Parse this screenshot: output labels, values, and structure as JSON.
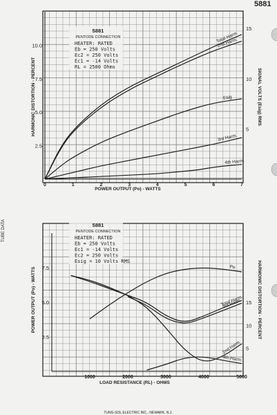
{
  "page": {
    "tube_number": "5881",
    "side_label": "TUBE DATA",
    "footer": "TUNG-SOL ELECTRIC INC., NEWARK, N.J."
  },
  "colors": {
    "paper": "#f2f2f0",
    "grid": "#8a8a8a",
    "ink": "#1e1e1e"
  },
  "punch_holes": 3,
  "chart_data": [
    {
      "type": "line",
      "title": "5881",
      "subtitle": "PENTODE CONNECTION",
      "notes": [
        "HEATER: RATED",
        "Eb = 250 Volts",
        "Ec2 = 250 Volts",
        "Ec1 = -14 Volts",
        "RL = 2500 Ohms"
      ],
      "xlabel": "POWER OUTPUT (Po) - WATTS",
      "ylabel": "HARMONIC DISTORTION - PERCENT",
      "y2label": "SIGNAL VOLTS (Esig) RMS",
      "xlim": [
        0,
        7
      ],
      "ylim": [
        0,
        12.5
      ],
      "y2lim": [
        0,
        16.67
      ],
      "xticks": [
        "0",
        "1",
        "2",
        "3",
        "4",
        "5",
        "6",
        "7"
      ],
      "yticks": [
        "2.5",
        "5.0",
        "7.5",
        "10.0"
      ],
      "y2ticks": [
        "5",
        "10",
        "15"
      ],
      "series": [
        {
          "name": "Total Harm.",
          "axis": "left",
          "x": [
            0,
            0.5,
            1,
            2,
            3,
            4,
            5,
            6,
            7
          ],
          "y": [
            0,
            2.2,
            3.7,
            5.6,
            6.9,
            7.9,
            8.9,
            9.9,
            10.8
          ]
        },
        {
          "name": "2nd Harm.",
          "axis": "left",
          "x": [
            0,
            0.5,
            1,
            2,
            3,
            4,
            5,
            6,
            7
          ],
          "y": [
            0,
            2.1,
            3.6,
            5.4,
            6.7,
            7.7,
            8.7,
            9.6,
            10.3
          ]
        },
        {
          "name": "Esig",
          "axis": "right",
          "x": [
            0,
            0.5,
            1,
            2,
            3,
            4,
            5,
            6,
            7
          ],
          "y": [
            0,
            1.2,
            2.2,
            3.7,
            4.8,
            5.8,
            6.8,
            7.6,
            8.0
          ]
        },
        {
          "name": "3rd Harm.",
          "axis": "left",
          "x": [
            0,
            1,
            2,
            3,
            4,
            5,
            6,
            7
          ],
          "y": [
            0,
            0.5,
            1.0,
            1.4,
            1.8,
            2.2,
            2.6,
            3.1
          ]
        },
        {
          "name": "4th Harm.",
          "axis": "left",
          "x": [
            0,
            1,
            2,
            3,
            4,
            5,
            5.5,
            6,
            6.5,
            7
          ],
          "y": [
            0,
            0.1,
            0.2,
            0.3,
            0.4,
            0.6,
            0.7,
            0.9,
            1.0,
            1.1
          ]
        }
      ]
    },
    {
      "type": "line",
      "title": "5881",
      "subtitle": "PENTODE CONNECTION",
      "notes": [
        "HEATER: RATED",
        "Eb = 250 Volts",
        "Ec1 = -14 Volts",
        "Ec2 = 250 Volts",
        "Esig = 10 Volts RMS"
      ],
      "xlabel": "LOAD RESISTANCE (RL) - OHMS",
      "ylabel": "POWER OUTPUT (Po) - WATTS",
      "y2label": "HARMONIC DISTORTION - PERCENT",
      "xlim": [
        0,
        5000
      ],
      "ylim": [
        0,
        10
      ],
      "y2lim": [
        0,
        30
      ],
      "xticks": [
        "1000",
        "2000",
        "3000",
        "4000",
        "5000"
      ],
      "yticks": [
        "2.5",
        "5.0",
        "7.5"
      ],
      "y2ticks": [
        "5",
        "10",
        "15"
      ],
      "series": [
        {
          "name": "Po",
          "axis": "left",
          "x": [
            1000,
            1500,
            2000,
            2500,
            3000,
            3500,
            4000,
            4500,
            5000
          ],
          "y": [
            3.8,
            4.8,
            5.7,
            6.5,
            7.1,
            7.4,
            7.5,
            7.4,
            7.2
          ]
        },
        {
          "name": "Total Harm.",
          "axis": "right",
          "x": [
            500,
            1000,
            1500,
            2000,
            2500,
            3000,
            3500,
            4000,
            4500,
            5000
          ],
          "y": [
            20.8,
            19.5,
            18.0,
            16.5,
            15.0,
            12.0,
            10.5,
            12.0,
            13.8,
            15.4
          ]
        },
        {
          "name": "3rd Harm.",
          "axis": "right",
          "x": [
            2000,
            2500,
            3000,
            3500,
            4000,
            4500,
            5000
          ],
          "y": [
            16.2,
            14.4,
            11.4,
            10.2,
            11.6,
            13.2,
            14.8
          ]
        },
        {
          "name": "2nd Harm.",
          "axis": "right",
          "x": [
            500,
            1000,
            1500,
            2000,
            2500,
            3000,
            3500,
            4000,
            4500,
            5000
          ],
          "y": [
            20.8,
            19.8,
            18.3,
            16.5,
            14.0,
            9.5,
            4.5,
            1.8,
            3.2,
            6.0
          ]
        },
        {
          "name": "4th Harm.",
          "axis": "right",
          "x": [
            2500,
            3000,
            3500,
            4000,
            4500,
            5000
          ],
          "y": [
            0.3,
            1.5,
            3.0,
            3.2,
            2.4,
            1.7
          ]
        }
      ]
    }
  ]
}
